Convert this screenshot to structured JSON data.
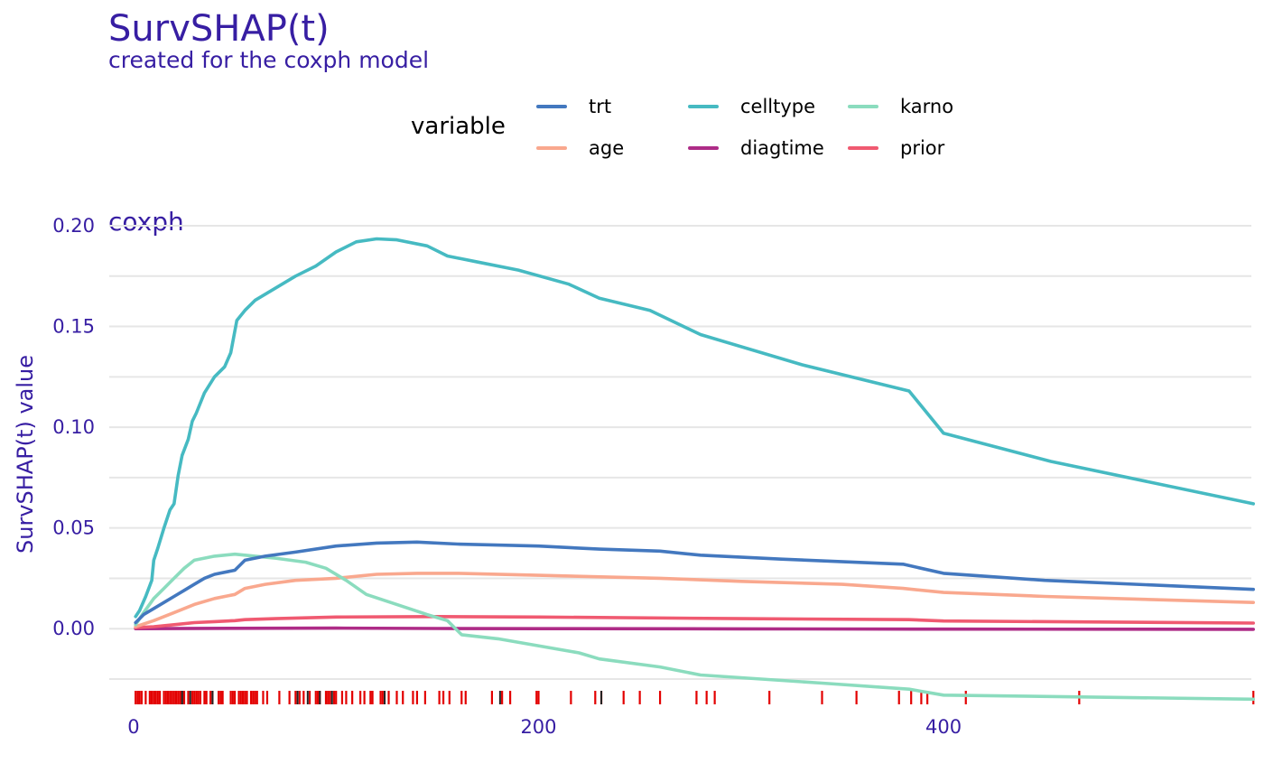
{
  "title": "SurvSHAP(t)",
  "subtitle": "created for the coxph model",
  "legend": {
    "title": "variable",
    "placement": "top-center"
  },
  "panel": {
    "label": "coxph"
  },
  "chart_data": {
    "type": "line",
    "title": "SurvSHAP(t)",
    "subtitle": "created for the coxph model",
    "xlabel": "",
    "ylabel": "SurvSHAP(t) value",
    "xlim": [
      -12,
      552
    ],
    "ylim": [
      -0.025,
      0.2
    ],
    "x_ticks": [
      0,
      200,
      400
    ],
    "x_tick_labels": [
      "0",
      "200",
      "400"
    ],
    "y_ticks": [
      0.0,
      0.05,
      0.1,
      0.15,
      0.2
    ],
    "y_tick_labels": [
      "0.00",
      "0.05",
      "0.10",
      "0.15",
      "0.20"
    ],
    "grid": true,
    "series": [
      {
        "name": "trt",
        "color": "#4378bf",
        "points": [
          [
            1,
            0.003
          ],
          [
            5,
            0.007
          ],
          [
            10,
            0.01
          ],
          [
            15,
            0.013
          ],
          [
            20,
            0.016
          ],
          [
            25,
            0.019
          ],
          [
            30,
            0.022
          ],
          [
            35,
            0.025
          ],
          [
            40,
            0.027
          ],
          [
            50,
            0.029
          ],
          [
            55,
            0.034
          ],
          [
            65,
            0.036
          ],
          [
            80,
            0.038
          ],
          [
            100,
            0.041
          ],
          [
            120,
            0.0425
          ],
          [
            140,
            0.043
          ],
          [
            160,
            0.042
          ],
          [
            200,
            0.041
          ],
          [
            230,
            0.0395
          ],
          [
            260,
            0.0385
          ],
          [
            280,
            0.0365
          ],
          [
            320,
            0.0345
          ],
          [
            380,
            0.032
          ],
          [
            400,
            0.0275
          ],
          [
            450,
            0.024
          ],
          [
            553,
            0.0195
          ]
        ]
      },
      {
        "name": "celltype",
        "color": "#46bac2",
        "points": [
          [
            1,
            0.006
          ],
          [
            3,
            0.009
          ],
          [
            6,
            0.016
          ],
          [
            9,
            0.024
          ],
          [
            10,
            0.034
          ],
          [
            12,
            0.04
          ],
          [
            15,
            0.05
          ],
          [
            18,
            0.059
          ],
          [
            20,
            0.062
          ],
          [
            22,
            0.076
          ],
          [
            24,
            0.086
          ],
          [
            27,
            0.094
          ],
          [
            29,
            0.103
          ],
          [
            31,
            0.107
          ],
          [
            35,
            0.117
          ],
          [
            40,
            0.125
          ],
          [
            45,
            0.13
          ],
          [
            48,
            0.137
          ],
          [
            51,
            0.153
          ],
          [
            55,
            0.158
          ],
          [
            60,
            0.163
          ],
          [
            70,
            0.169
          ],
          [
            80,
            0.175
          ],
          [
            90,
            0.18
          ],
          [
            100,
            0.187
          ],
          [
            110,
            0.192
          ],
          [
            120,
            0.1935
          ],
          [
            130,
            0.193
          ],
          [
            145,
            0.19
          ],
          [
            155,
            0.185
          ],
          [
            170,
            0.182
          ],
          [
            190,
            0.178
          ],
          [
            215,
            0.171
          ],
          [
            230,
            0.164
          ],
          [
            255,
            0.158
          ],
          [
            280,
            0.146
          ],
          [
            330,
            0.131
          ],
          [
            383,
            0.118
          ],
          [
            400,
            0.097
          ],
          [
            453,
            0.083
          ],
          [
            553,
            0.062
          ]
        ]
      },
      {
        "name": "karno",
        "color": "#8bdcbe",
        "points": [
          [
            1,
            0.002
          ],
          [
            5,
            0.008
          ],
          [
            10,
            0.015
          ],
          [
            15,
            0.02
          ],
          [
            20,
            0.025
          ],
          [
            25,
            0.03
          ],
          [
            30,
            0.034
          ],
          [
            40,
            0.036
          ],
          [
            50,
            0.037
          ],
          [
            60,
            0.036
          ],
          [
            70,
            0.035
          ],
          [
            85,
            0.033
          ],
          [
            95,
            0.03
          ],
          [
            105,
            0.024
          ],
          [
            115,
            0.017
          ],
          [
            130,
            0.012
          ],
          [
            145,
            0.007
          ],
          [
            155,
            0.004
          ],
          [
            162,
            -0.003
          ],
          [
            180,
            -0.005
          ],
          [
            220,
            -0.012
          ],
          [
            230,
            -0.015
          ],
          [
            260,
            -0.019
          ],
          [
            280,
            -0.023
          ],
          [
            340,
            -0.027
          ],
          [
            383,
            -0.03
          ],
          [
            400,
            -0.033
          ],
          [
            553,
            -0.035
          ]
        ]
      },
      {
        "name": "age",
        "color": "#f9a88e",
        "points": [
          [
            1,
            0.001
          ],
          [
            10,
            0.004
          ],
          [
            20,
            0.008
          ],
          [
            30,
            0.012
          ],
          [
            40,
            0.015
          ],
          [
            50,
            0.017
          ],
          [
            55,
            0.02
          ],
          [
            65,
            0.022
          ],
          [
            80,
            0.024
          ],
          [
            100,
            0.025
          ],
          [
            120,
            0.027
          ],
          [
            140,
            0.0275
          ],
          [
            160,
            0.0275
          ],
          [
            200,
            0.0265
          ],
          [
            260,
            0.025
          ],
          [
            300,
            0.0235
          ],
          [
            350,
            0.022
          ],
          [
            380,
            0.02
          ],
          [
            400,
            0.018
          ],
          [
            450,
            0.016
          ],
          [
            553,
            0.013
          ]
        ]
      },
      {
        "name": "diagtime",
        "color": "#ae2c87",
        "points": [
          [
            1,
            0.0
          ],
          [
            50,
            0.0002
          ],
          [
            100,
            0.0003
          ],
          [
            150,
            0.0001
          ],
          [
            200,
            0.0
          ],
          [
            300,
            -0.0001
          ],
          [
            400,
            -0.0002
          ],
          [
            553,
            -0.0003
          ]
        ]
      },
      {
        "name": "prior",
        "color": "#f05a71",
        "points": [
          [
            1,
            0.0005
          ],
          [
            10,
            0.001
          ],
          [
            20,
            0.002
          ],
          [
            30,
            0.003
          ],
          [
            40,
            0.0035
          ],
          [
            50,
            0.004
          ],
          [
            55,
            0.0045
          ],
          [
            70,
            0.005
          ],
          [
            100,
            0.0058
          ],
          [
            150,
            0.006
          ],
          [
            200,
            0.0058
          ],
          [
            300,
            0.005
          ],
          [
            383,
            0.0045
          ],
          [
            400,
            0.0038
          ],
          [
            553,
            0.0028
          ]
        ]
      }
    ],
    "rug": {
      "color": "#e30000",
      "secondary_color": "#222222",
      "ticks": [
        1,
        2,
        3,
        4,
        6,
        8,
        9,
        10,
        11,
        12,
        13,
        15,
        16,
        17,
        18,
        19,
        20,
        21,
        22,
        23,
        24,
        25,
        27,
        29,
        30,
        31,
        32,
        33,
        35,
        36,
        38,
        39,
        42,
        43,
        44,
        48,
        49,
        50,
        52,
        53,
        54,
        55,
        56,
        58,
        59,
        60,
        61,
        64,
        66,
        72,
        77,
        80,
        82,
        84,
        87,
        90,
        91,
        92,
        95,
        96,
        97,
        99,
        100,
        103,
        105,
        108,
        112,
        114,
        117,
        118,
        122,
        123,
        126,
        130,
        133,
        138,
        140,
        144,
        151,
        153,
        156,
        162,
        164,
        177,
        182,
        186,
        199,
        200,
        216,
        228,
        231,
        242,
        250,
        260,
        278,
        283,
        287,
        314,
        340,
        357,
        378,
        384,
        389,
        392,
        411,
        467,
        553
      ],
      "dark_ticks": [
        24,
        28,
        39,
        81,
        86,
        92,
        98,
        124,
        181,
        231
      ]
    }
  }
}
